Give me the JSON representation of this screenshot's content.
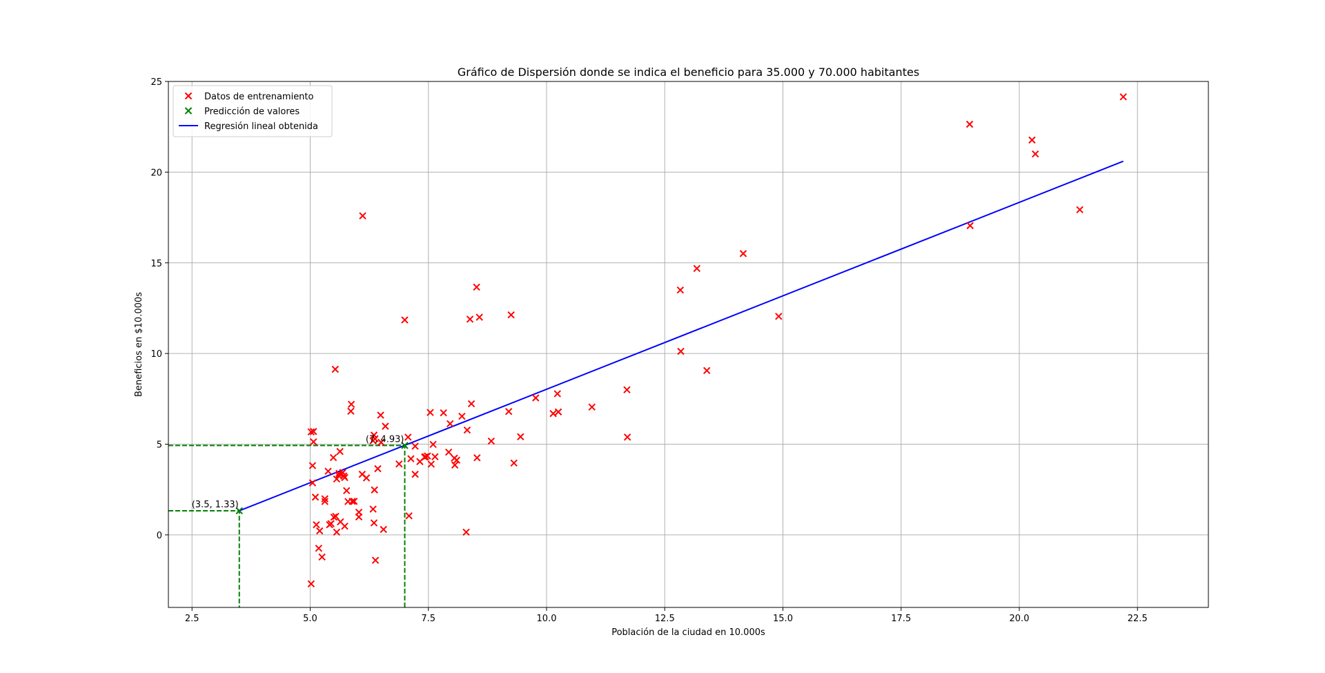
{
  "chart_data": {
    "type": "scatter",
    "title": "Gráfico de Dispersión donde se indica el beneficio para 35.000 y 70.000 habitantes",
    "xlabel": "Población de la ciudad en 10.000s",
    "ylabel": "Beneficios en $10.000s",
    "xlim": [
      2.0,
      24.0
    ],
    "ylim": [
      -4.0,
      25.0
    ],
    "xticks": [
      2.5,
      5.0,
      7.5,
      10.0,
      12.5,
      15.0,
      17.5,
      20.0,
      22.5
    ],
    "xtick_labels": [
      "2.5",
      "5.0",
      "7.5",
      "10.0",
      "12.5",
      "15.0",
      "17.5",
      "20.0",
      "22.5"
    ],
    "yticks": [
      0,
      5,
      10,
      15,
      20,
      25
    ],
    "ytick_labels": [
      "0",
      "5",
      "10",
      "15",
      "20",
      "25"
    ],
    "grid": true,
    "legend_position": "top-left",
    "legend": [
      {
        "label": "Datos de entrenamiento",
        "marker": "x",
        "color": "#ff0000"
      },
      {
        "label": "Predicción de valores",
        "marker": "x",
        "color": "#008000"
      },
      {
        "label": "Regresión lineal obtenida",
        "marker": "line",
        "color": "#0000ff"
      }
    ],
    "series": [
      {
        "name": "Datos de entrenamiento",
        "kind": "scatter",
        "marker": "x",
        "color": "#ff0000",
        "points": [
          [
            6.11,
            17.59
          ],
          [
            5.53,
            9.13
          ],
          [
            8.52,
            13.66
          ],
          [
            7.0,
            11.85
          ],
          [
            5.86,
            6.82
          ],
          [
            8.38,
            11.89
          ],
          [
            7.48,
            4.35
          ],
          [
            8.58,
            12.0
          ],
          [
            6.49,
            6.6
          ],
          [
            5.05,
            3.82
          ],
          [
            5.71,
            3.25
          ],
          [
            14.16,
            15.51
          ],
          [
            5.73,
            3.16
          ],
          [
            8.41,
            7.23
          ],
          [
            5.64,
            0.72
          ],
          [
            5.38,
            3.51
          ],
          [
            6.37,
            5.3
          ],
          [
            5.13,
            0.56
          ],
          [
            6.43,
            3.65
          ],
          [
            7.07,
            5.39
          ],
          [
            6.19,
            3.14
          ],
          [
            20.27,
            21.77
          ],
          [
            5.49,
            4.26
          ],
          [
            6.33,
            5.19
          ],
          [
            5.56,
            3.08
          ],
          [
            18.95,
            22.64
          ],
          [
            12.83,
            13.5
          ],
          [
            10.96,
            7.05
          ],
          [
            13.18,
            14.69
          ],
          [
            22.2,
            24.15
          ],
          [
            5.25,
            -1.22
          ],
          [
            6.59,
            5.99
          ],
          [
            9.25,
            12.13
          ],
          [
            5.89,
            1.85
          ],
          [
            8.21,
            6.54
          ],
          [
            7.93,
            4.56
          ],
          [
            8.1,
            4.12
          ],
          [
            5.61,
            3.39
          ],
          [
            12.84,
            10.12
          ],
          [
            6.35,
            5.5
          ],
          [
            5.41,
            0.56
          ],
          [
            6.88,
            3.91
          ],
          [
            11.71,
            5.39
          ],
          [
            5.77,
            2.44
          ],
          [
            7.82,
            6.73
          ],
          [
            7.09,
            1.05
          ],
          [
            5.07,
            5.13
          ],
          [
            5.8,
            1.84
          ],
          [
            11.7,
            8.0
          ],
          [
            5.54,
            1.02
          ],
          [
            7.54,
            6.75
          ],
          [
            5.31,
            1.84
          ],
          [
            7.42,
            4.29
          ],
          [
            7.6,
            4.99
          ],
          [
            6.33,
            1.42
          ],
          [
            6.36,
            2.48
          ],
          [
            5.63,
            4.6
          ],
          [
            9.31,
            3.96
          ],
          [
            9.45,
            5.41
          ],
          [
            8.83,
            5.17
          ],
          [
            5.18,
            -0.74
          ],
          [
            21.28,
            17.93
          ],
          [
            14.91,
            12.05
          ],
          [
            18.96,
            17.05
          ],
          [
            7.22,
            4.89
          ],
          [
            5.07,
            5.7
          ],
          [
            5.11,
            2.08
          ],
          [
            5.73,
            0.48
          ],
          [
            7.64,
            4.31
          ],
          [
            5.87,
            7.2
          ],
          [
            5.31,
            1.99
          ],
          [
            8.3,
            0.15
          ],
          [
            13.39,
            9.06
          ],
          [
            5.44,
            0.62
          ],
          [
            6.35,
            0.66
          ],
          [
            5.5,
            0.98
          ],
          [
            5.05,
            2.87
          ],
          [
            10.14,
            6.69
          ],
          [
            20.34,
            21.0
          ],
          [
            5.02,
            5.68
          ],
          [
            9.2,
            6.8
          ],
          [
            7.56,
            3.9
          ],
          [
            5.56,
            0.15
          ],
          [
            8.05,
            4.23
          ],
          [
            6.1,
            3.34
          ],
          [
            5.02,
            -2.7
          ],
          [
            6.5,
            5.1
          ],
          [
            9.77,
            7.55
          ],
          [
            7.13,
            4.2
          ],
          [
            5.6,
            3.28
          ],
          [
            10.23,
            7.78
          ],
          [
            7.96,
            6.13
          ],
          [
            10.25,
            6.78
          ],
          [
            8.32,
            5.78
          ],
          [
            6.38,
            -1.4
          ],
          [
            6.55,
            0.3
          ],
          [
            7.22,
            3.34
          ],
          [
            8.53,
            4.25
          ],
          [
            7.44,
            4.31
          ],
          [
            6.03,
            1.25
          ],
          [
            6.03,
            0.99
          ],
          [
            5.93,
            1.85
          ],
          [
            8.06,
            3.85
          ],
          [
            5.69,
            3.44
          ],
          [
            7.32,
            4.04
          ],
          [
            5.2,
            0.22
          ]
        ]
      },
      {
        "name": "Predicción de valores",
        "kind": "scatter",
        "marker": "x",
        "color": "#008000",
        "points": [
          [
            3.5,
            1.33
          ],
          [
            7.0,
            4.93
          ]
        ]
      },
      {
        "name": "Regresión lineal obtenida",
        "kind": "line",
        "color": "#0000ff",
        "points": [
          [
            3.5,
            1.33
          ],
          [
            22.2,
            20.6
          ]
        ]
      }
    ],
    "guide_lines": [
      {
        "color": "#008000",
        "style": "dashed",
        "points": [
          [
            2.0,
            1.33
          ],
          [
            3.5,
            1.33
          ],
          [
            3.5,
            -4.0
          ]
        ]
      },
      {
        "color": "#008000",
        "style": "dashed",
        "points": [
          [
            2.0,
            4.93
          ],
          [
            7.0,
            4.93
          ],
          [
            7.0,
            -4.0
          ]
        ]
      }
    ],
    "annotations": [
      {
        "text": "(3.5, 1.33)",
        "x": 3.5,
        "y": 1.33
      },
      {
        "text": "(7, 4.93)",
        "x": 7.0,
        "y": 4.93
      }
    ]
  }
}
